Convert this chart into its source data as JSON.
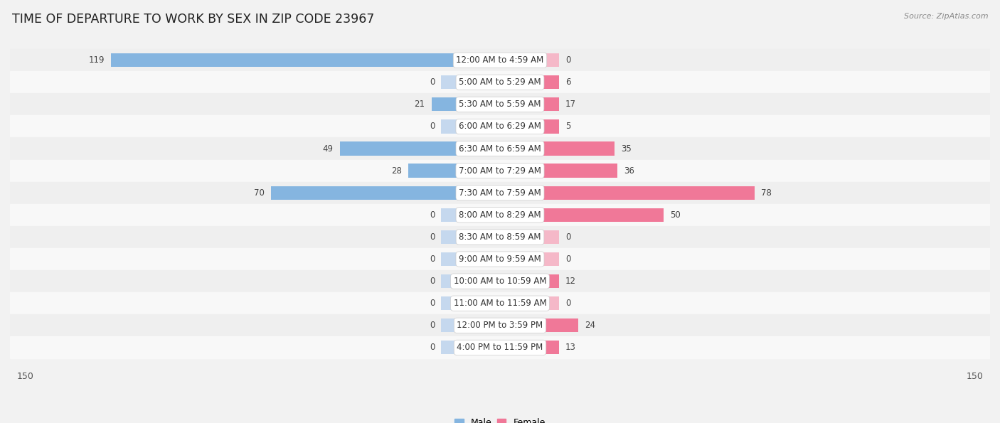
{
  "title": "TIME OF DEPARTURE TO WORK BY SEX IN ZIP CODE 23967",
  "source": "Source: ZipAtlas.com",
  "categories": [
    "12:00 AM to 4:59 AM",
    "5:00 AM to 5:29 AM",
    "5:30 AM to 5:59 AM",
    "6:00 AM to 6:29 AM",
    "6:30 AM to 6:59 AM",
    "7:00 AM to 7:29 AM",
    "7:30 AM to 7:59 AM",
    "8:00 AM to 8:29 AM",
    "8:30 AM to 8:59 AM",
    "9:00 AM to 9:59 AM",
    "10:00 AM to 10:59 AM",
    "11:00 AM to 11:59 AM",
    "12:00 PM to 3:59 PM",
    "4:00 PM to 11:59 PM"
  ],
  "male_values": [
    119,
    0,
    21,
    0,
    49,
    28,
    70,
    0,
    0,
    0,
    0,
    0,
    0,
    0
  ],
  "female_values": [
    0,
    6,
    17,
    5,
    35,
    36,
    78,
    50,
    0,
    0,
    12,
    0,
    24,
    13
  ],
  "male_color": "#85b5e0",
  "male_stub_color": "#c5d8ee",
  "female_color": "#f07898",
  "female_stub_color": "#f5b8c8",
  "axis_max": 150,
  "stub_size": 18,
  "row_bg_odd": "#efefef",
  "row_bg_even": "#f8f8f8",
  "title_fontsize": 12.5,
  "source_fontsize": 8,
  "label_fontsize": 9,
  "category_fontsize": 8.5,
  "value_fontsize": 8.5
}
